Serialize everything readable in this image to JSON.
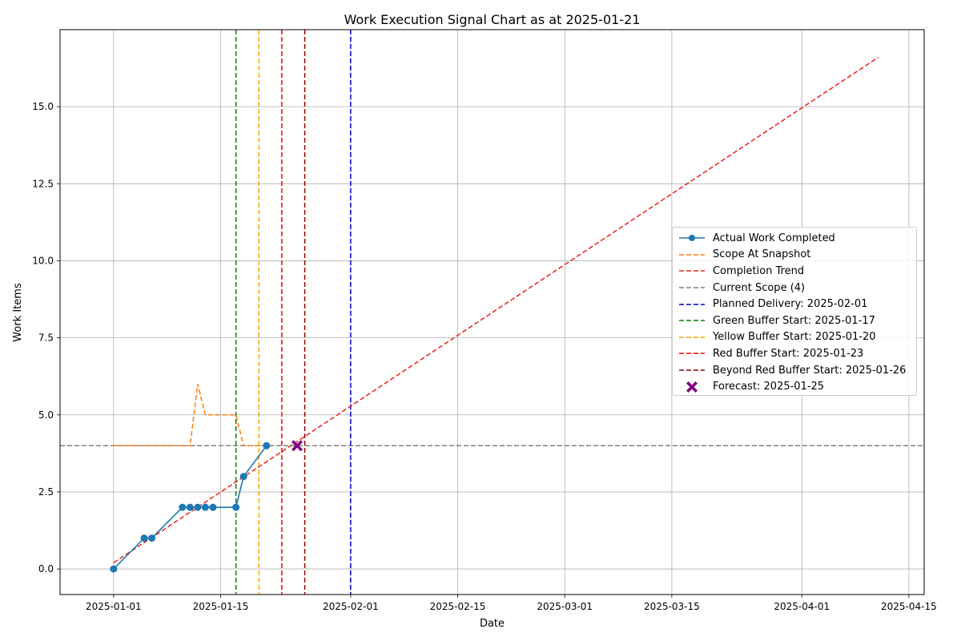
{
  "chart_data": {
    "type": "line",
    "title": "Work Execution Signal Chart as at 2025-01-21",
    "xlabel": "Date",
    "ylabel": "Work Items",
    "xlim": [
      "2024-12-25",
      "2025-04-17"
    ],
    "ylim": [
      -0.83,
      17.5
    ],
    "grid": true,
    "legend_position": "center-right",
    "x_tick_labels": [
      "2025-01-01",
      "2025-01-15",
      "2025-02-01",
      "2025-02-15",
      "2025-03-01",
      "2025-03-15",
      "2025-04-01",
      "2025-04-15"
    ],
    "y_tick_labels": [
      "0.0",
      "2.5",
      "5.0",
      "7.5",
      "10.0",
      "12.5",
      "15.0"
    ],
    "series": [
      {
        "name": "Actual Work Completed",
        "kind": "line-marker",
        "color": "#1f77b4",
        "points": [
          [
            "2025-01-01",
            0
          ],
          [
            "2025-01-05",
            1
          ],
          [
            "2025-01-06",
            1
          ],
          [
            "2025-01-10",
            2
          ],
          [
            "2025-01-11",
            2
          ],
          [
            "2025-01-12",
            2
          ],
          [
            "2025-01-13",
            2
          ],
          [
            "2025-01-14",
            2
          ],
          [
            "2025-01-17",
            2
          ],
          [
            "2025-01-18",
            3
          ],
          [
            "2025-01-21",
            4
          ]
        ]
      },
      {
        "name": "Scope At Snapshot",
        "kind": "dashed",
        "color": "#ff7f0e",
        "points": [
          [
            "2025-01-01",
            4
          ],
          [
            "2025-01-11",
            4
          ],
          [
            "2025-01-12",
            6
          ],
          [
            "2025-01-13",
            5
          ],
          [
            "2025-01-17",
            5
          ],
          [
            "2025-01-18",
            4
          ],
          [
            "2025-01-21",
            4
          ]
        ]
      },
      {
        "name": "Completion Trend",
        "kind": "dashed",
        "color": "#e8231a",
        "points": [
          [
            "2025-01-01",
            0.2
          ],
          [
            "2025-04-11",
            16.6
          ]
        ]
      },
      {
        "name": "Current Scope (4)",
        "kind": "hline",
        "color": "#808080",
        "y": 4
      },
      {
        "name": "Planned Delivery: 2025-02-01",
        "kind": "vline",
        "color": "#0000cd",
        "x": "2025-02-01"
      },
      {
        "name": "Green Buffer Start: 2025-01-17",
        "kind": "vline",
        "color": "#008000",
        "x": "2025-01-17"
      },
      {
        "name": "Yellow Buffer Start: 2025-01-20",
        "kind": "vline",
        "color": "#ffa500",
        "x": "2025-01-20"
      },
      {
        "name": "Red Buffer Start: 2025-01-23",
        "kind": "vline",
        "color": "#ff0000",
        "x": "2025-01-23"
      },
      {
        "name": "Beyond Red Buffer Start: 2025-01-26",
        "kind": "vline",
        "color": "#8b0000",
        "x": "2025-01-26"
      },
      {
        "name": "Forecast: 2025-01-25",
        "kind": "point-x",
        "color": "#800080",
        "x": "2025-01-25",
        "y": 4
      }
    ]
  }
}
